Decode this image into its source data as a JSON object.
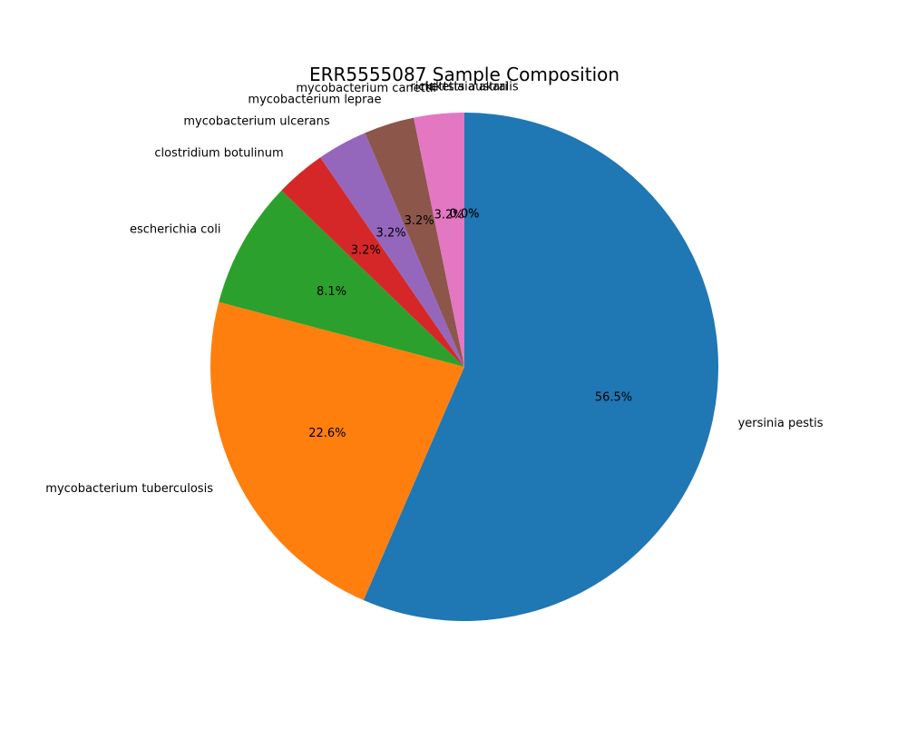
{
  "chart_data": {
    "type": "pie",
    "title": "ERR5555087 Sample Composition",
    "start_angle_deg": 90,
    "direction": "clockwise",
    "slices": [
      {
        "label": "yersinia pestis",
        "value": 56.5,
        "pct_text": "56.5%",
        "color": "#1f77b4"
      },
      {
        "label": "mycobacterium tuberculosis",
        "value": 22.6,
        "pct_text": "22.6%",
        "color": "#ff7f0e"
      },
      {
        "label": "escherichia coli",
        "value": 8.1,
        "pct_text": "8.1%",
        "color": "#2ca02c"
      },
      {
        "label": "clostridium botulinum",
        "value": 3.2,
        "pct_text": "3.2%",
        "color": "#d62728"
      },
      {
        "label": "mycobacterium ulcerans",
        "value": 3.2,
        "pct_text": "3.2%",
        "color": "#9467bd"
      },
      {
        "label": "mycobacterium leprae",
        "value": 3.2,
        "pct_text": "3.2%",
        "color": "#8c564b"
      },
      {
        "label": "mycobacterium canettii",
        "value": 3.2,
        "pct_text": "3.2%",
        "color": "#e377c2"
      },
      {
        "label": "rickettsia akari",
        "value": 0.0,
        "pct_text": "0.0%",
        "color": "#7f7f7f"
      },
      {
        "label": "rickettsia australis",
        "value": 0.0,
        "pct_text": "0.0%",
        "color": "#bcbd22"
      }
    ]
  }
}
